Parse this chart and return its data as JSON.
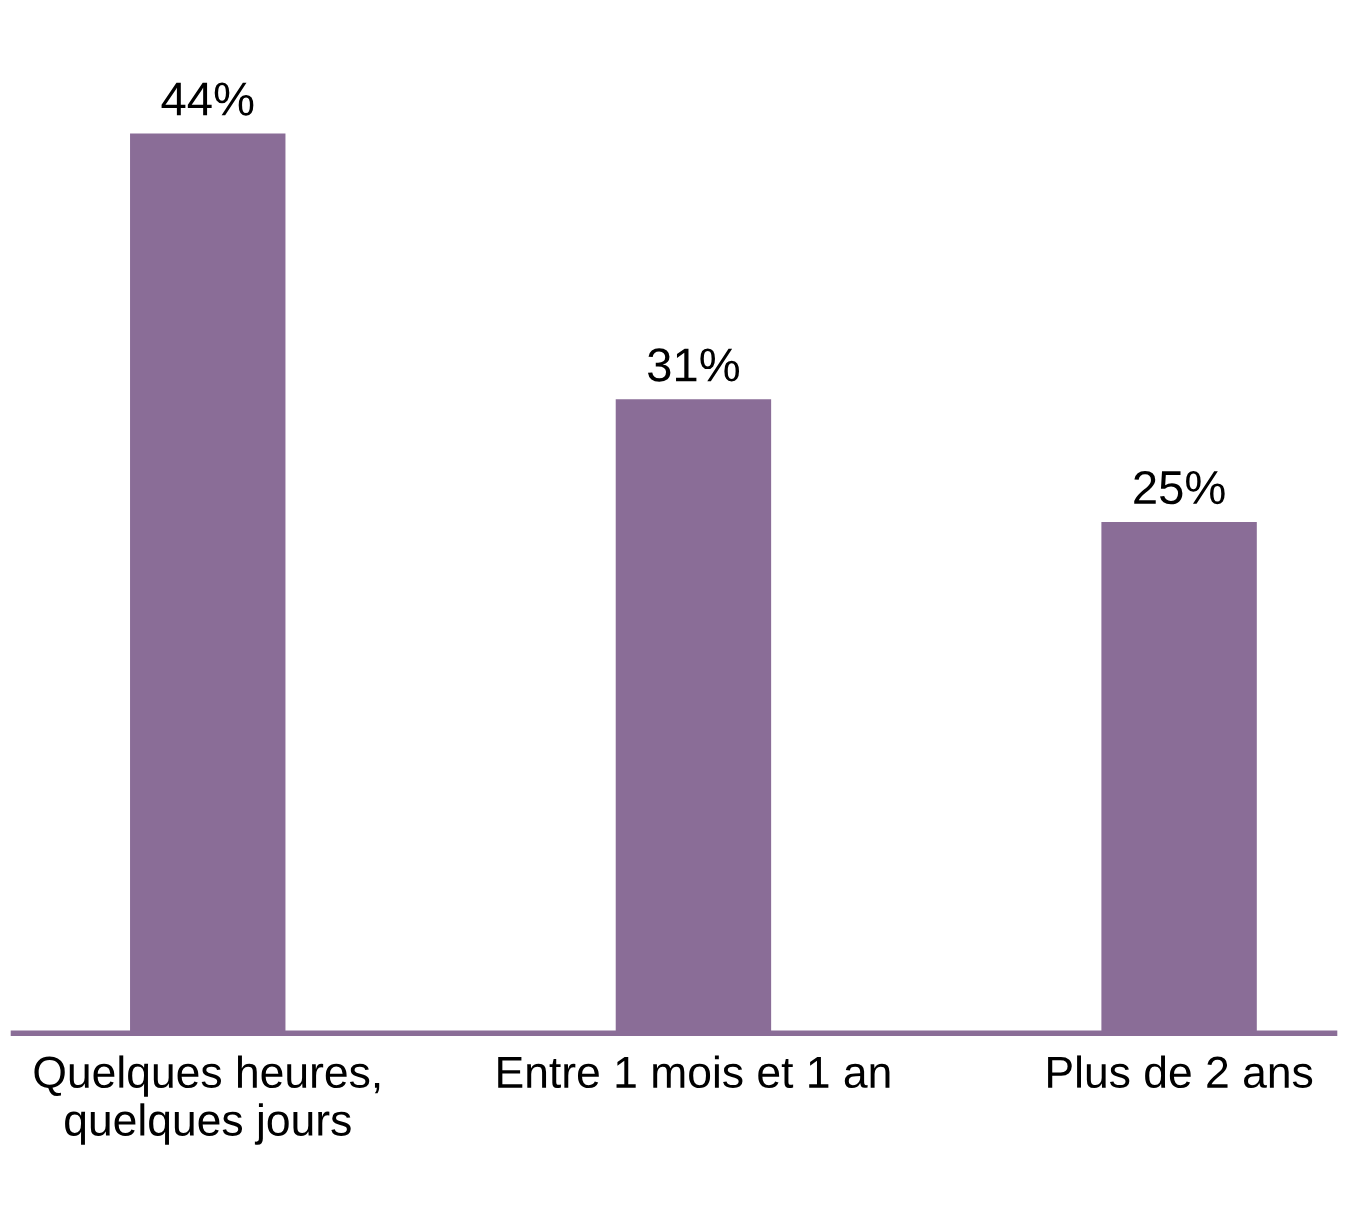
{
  "chart_data": {
    "type": "bar",
    "categories": [
      "Quelques heures,\nquelques jours",
      "Entre 1 mois et 1 an",
      "Plus de 2 ans"
    ],
    "values": [
      44,
      31,
      25
    ],
    "value_labels": [
      "44%",
      "31%",
      "25%"
    ],
    "color": "#8a6d97",
    "grid": false,
    "legend": false
  }
}
